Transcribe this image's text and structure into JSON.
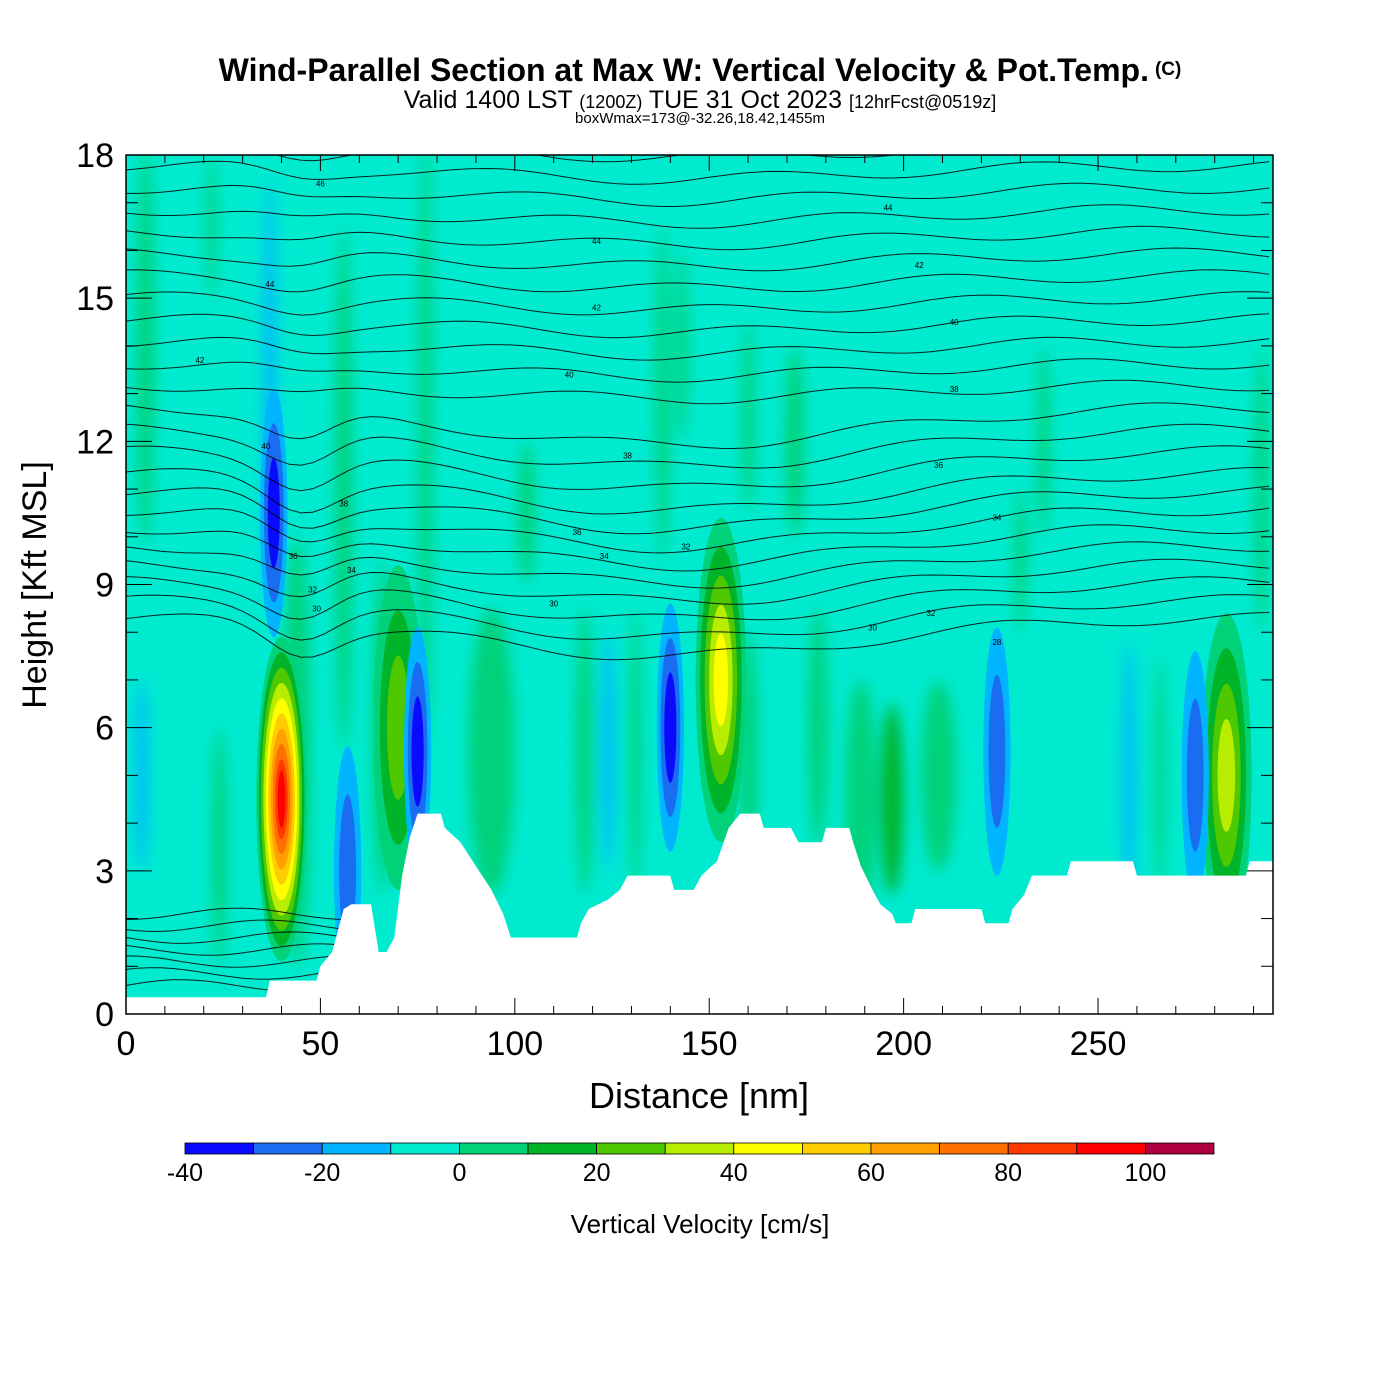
{
  "header": {
    "title_main": "Wind-Parallel Section at Max W: Vertical Velocity & Pot.Temp.",
    "copyright": "(C)",
    "subtitle_valid": "Valid 1400 LST",
    "subtitle_z": "(1200Z)",
    "subtitle_date": "TUE 31 Oct 2023",
    "subtitle_fcst": "[12hrFcst@0519z]",
    "box_line": "boxWmax=173@-32.26,18.42,1455m"
  },
  "chart_data": {
    "type": "heatmap",
    "xlabel": "Distance [nm]",
    "ylabel": "Height [Kft MSL]",
    "xlim": [
      0,
      295
    ],
    "ylim": [
      0,
      18
    ],
    "xticks": [
      0,
      50,
      100,
      150,
      200,
      250
    ],
    "yticks": [
      0,
      3,
      6,
      9,
      12,
      15,
      18
    ],
    "colorbar": {
      "label": "Vertical Velocity [cm/s]",
      "ticks": [
        -40,
        -20,
        0,
        20,
        40,
        60,
        80,
        100
      ],
      "bins": [
        {
          "from": -40,
          "to": -30,
          "color": "#0a0aff"
        },
        {
          "from": -30,
          "to": -20,
          "color": "#1a6cf0"
        },
        {
          "from": -20,
          "to": -10,
          "color": "#00b4ff"
        },
        {
          "from": -10,
          "to": 0,
          "color": "#00ead0"
        },
        {
          "from": 0,
          "to": 10,
          "color": "#00d27a"
        },
        {
          "from": 10,
          "to": 20,
          "color": "#00b42a"
        },
        {
          "from": 20,
          "to": 30,
          "color": "#4ec800"
        },
        {
          "from": 30,
          "to": 40,
          "color": "#b8ec00"
        },
        {
          "from": 40,
          "to": 50,
          "color": "#ffff00"
        },
        {
          "from": 50,
          "to": 60,
          "color": "#ffcc00"
        },
        {
          "from": 60,
          "to": 70,
          "color": "#ffa000"
        },
        {
          "from": 70,
          "to": 80,
          "color": "#ff7000"
        },
        {
          "from": 80,
          "to": 90,
          "color": "#ff3a00"
        },
        {
          "from": 90,
          "to": 100,
          "color": "#ff0000"
        },
        {
          "from": 100,
          "to": 110,
          "color": "#b00040"
        }
      ]
    },
    "terrain_kft": [
      [
        0,
        0.35
      ],
      [
        36,
        0.35
      ],
      [
        37,
        0.7
      ],
      [
        49,
        0.7
      ],
      [
        50,
        1.0
      ],
      [
        53,
        1.3
      ],
      [
        54,
        1.6
      ],
      [
        56,
        2.2
      ],
      [
        58,
        2.3
      ],
      [
        63,
        2.3
      ],
      [
        65,
        1.3
      ],
      [
        67,
        1.3
      ],
      [
        69,
        1.6
      ],
      [
        71,
        2.9
      ],
      [
        73,
        3.7
      ],
      [
        75,
        4.2
      ],
      [
        81,
        4.2
      ],
      [
        82,
        3.9
      ],
      [
        86,
        3.6
      ],
      [
        90,
        3.1
      ],
      [
        94,
        2.6
      ],
      [
        97,
        2.1
      ],
      [
        99,
        1.6
      ],
      [
        116,
        1.6
      ],
      [
        117,
        1.9
      ],
      [
        119,
        2.2
      ],
      [
        124,
        2.4
      ],
      [
        127,
        2.6
      ],
      [
        129,
        2.9
      ],
      [
        140,
        2.9
      ],
      [
        141,
        2.6
      ],
      [
        146,
        2.6
      ],
      [
        148,
        2.9
      ],
      [
        152,
        3.2
      ],
      [
        155,
        3.9
      ],
      [
        158,
        4.2
      ],
      [
        163,
        4.2
      ],
      [
        164,
        3.9
      ],
      [
        171,
        3.9
      ],
      [
        173,
        3.6
      ],
      [
        179,
        3.6
      ],
      [
        180,
        3.9
      ],
      [
        186,
        3.9
      ],
      [
        187,
        3.6
      ],
      [
        189,
        3.1
      ],
      [
        192,
        2.6
      ],
      [
        194,
        2.3
      ],
      [
        197,
        2.1
      ],
      [
        198,
        1.9
      ],
      [
        202,
        1.9
      ],
      [
        203,
        2.2
      ],
      [
        220,
        2.2
      ],
      [
        221,
        1.9
      ],
      [
        227,
        1.9
      ],
      [
        228,
        2.2
      ],
      [
        231,
        2.5
      ],
      [
        233,
        2.9
      ],
      [
        242,
        2.9
      ],
      [
        243,
        3.2
      ],
      [
        259,
        3.2
      ],
      [
        260,
        2.9
      ],
      [
        288,
        2.9
      ],
      [
        289,
        3.2
      ],
      [
        295,
        3.2
      ]
    ],
    "updraft_cores": [
      {
        "x": 40,
        "y": 4.5,
        "peak_cm_s": 100
      },
      {
        "x": 153,
        "y": 7.0,
        "peak_cm_s": 50
      },
      {
        "x": 70,
        "y": 6.0,
        "peak_cm_s": 30
      },
      {
        "x": 283,
        "y": 5.0,
        "peak_cm_s": 40
      }
    ],
    "downdraft_cores": [
      {
        "x": 38,
        "y": 10.5,
        "peak_cm_s": -40
      },
      {
        "x": 75,
        "y": 5.5,
        "peak_cm_s": -40
      },
      {
        "x": 140,
        "y": 6.0,
        "peak_cm_s": -40
      },
      {
        "x": 224,
        "y": 5.5,
        "peak_cm_s": -30
      },
      {
        "x": 275,
        "y": 5.0,
        "peak_cm_s": -30
      },
      {
        "x": 57,
        "y": 3.0,
        "peak_cm_s": -30
      }
    ],
    "isentrope_labels": [
      {
        "x": 50,
        "y": 17.4,
        "text": "46"
      },
      {
        "x": 37,
        "y": 15.3,
        "text": "44"
      },
      {
        "x": 19,
        "y": 13.7,
        "text": "42"
      },
      {
        "x": 36,
        "y": 11.9,
        "text": "40"
      },
      {
        "x": 56,
        "y": 10.7,
        "text": "38"
      },
      {
        "x": 43,
        "y": 9.6,
        "text": "36"
      },
      {
        "x": 58,
        "y": 9.3,
        "text": "34"
      },
      {
        "x": 48,
        "y": 8.9,
        "text": "32"
      },
      {
        "x": 49,
        "y": 8.5,
        "text": "30"
      },
      {
        "x": 121,
        "y": 16.2,
        "text": "44"
      },
      {
        "x": 121,
        "y": 14.8,
        "text": "42"
      },
      {
        "x": 114,
        "y": 13.4,
        "text": "40"
      },
      {
        "x": 129,
        "y": 11.7,
        "text": "38"
      },
      {
        "x": 116,
        "y": 10.1,
        "text": "36"
      },
      {
        "x": 123,
        "y": 9.6,
        "text": "34"
      },
      {
        "x": 144,
        "y": 9.8,
        "text": "32"
      },
      {
        "x": 110,
        "y": 8.6,
        "text": "30"
      },
      {
        "x": 196,
        "y": 16.9,
        "text": "44"
      },
      {
        "x": 204,
        "y": 15.7,
        "text": "42"
      },
      {
        "x": 213,
        "y": 14.5,
        "text": "40"
      },
      {
        "x": 213,
        "y": 13.1,
        "text": "38"
      },
      {
        "x": 209,
        "y": 11.5,
        "text": "36"
      },
      {
        "x": 224,
        "y": 10.4,
        "text": "34"
      },
      {
        "x": 207,
        "y": 8.4,
        "text": "32"
      },
      {
        "x": 192,
        "y": 8.1,
        "text": "30"
      },
      {
        "x": 224,
        "y": 7.8,
        "text": "28"
      }
    ]
  }
}
